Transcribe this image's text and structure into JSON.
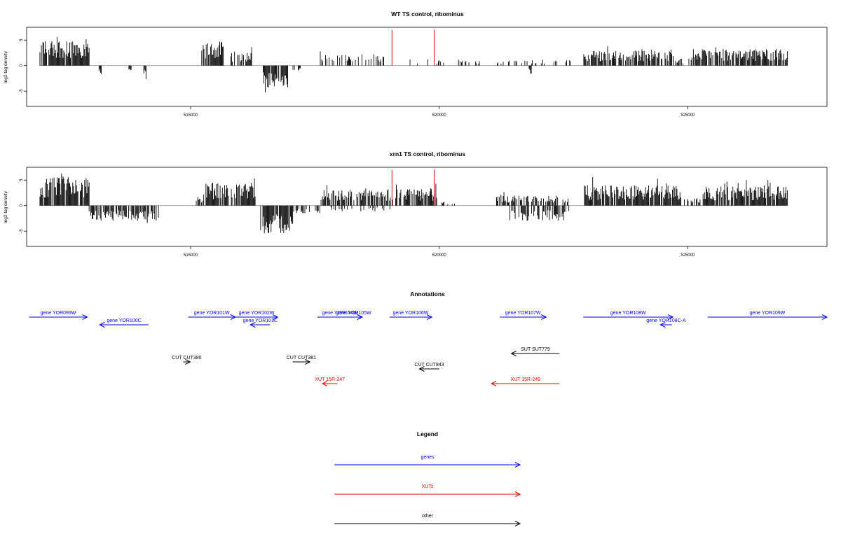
{
  "chart_data": [
    {
      "type": "bar",
      "title": "WT TS control, ribominus",
      "ylabel": "log2 tag density",
      "xlim": [
        511700,
        527800
      ],
      "ylim": [
        -8,
        7.5
      ],
      "xticks": [
        515000,
        520000,
        525000
      ],
      "yticks": [
        -5,
        0,
        5
      ],
      "grid": false,
      "baseline_color": "#999999",
      "bar_color": "#000000",
      "marker_color": "#e00000",
      "markers": [
        519050,
        519900
      ],
      "regions": [
        {
          "start": 511960,
          "end": 512960,
          "sign": 1,
          "amp": 4.2,
          "density": 0.85
        },
        {
          "start": 513150,
          "end": 513200,
          "sign": -1,
          "amp": 1.8,
          "density": 1
        },
        {
          "start": 513750,
          "end": 513800,
          "sign": -1,
          "amp": 1.0,
          "density": 1
        },
        {
          "start": 514050,
          "end": 514100,
          "sign": -1,
          "amp": 2.2,
          "density": 1
        },
        {
          "start": 515200,
          "end": 515650,
          "sign": 1,
          "amp": 3.8,
          "density": 0.85
        },
        {
          "start": 515800,
          "end": 516250,
          "sign": 1,
          "amp": 2.2,
          "density": 0.65
        },
        {
          "start": 516450,
          "end": 516950,
          "sign": -1,
          "amp": 3.6,
          "density": 0.95
        },
        {
          "start": 517050,
          "end": 517250,
          "sign": -1,
          "amp": 0.8,
          "density": 0.5
        },
        {
          "start": 517600,
          "end": 518900,
          "sign": 1,
          "amp": 1.8,
          "density": 0.45
        },
        {
          "start": 519300,
          "end": 520800,
          "sign": 1,
          "amp": 1.0,
          "density": 0.12
        },
        {
          "start": 521100,
          "end": 522700,
          "sign": 1,
          "amp": 1.0,
          "density": 0.25
        },
        {
          "start": 521800,
          "end": 521850,
          "sign": -1,
          "amp": 1.6,
          "density": 1
        },
        {
          "start": 522900,
          "end": 524700,
          "sign": 1,
          "amp": 2.4,
          "density": 0.75
        },
        {
          "start": 524700,
          "end": 524950,
          "sign": 1,
          "amp": 1.2,
          "density": 0.5
        },
        {
          "start": 525000,
          "end": 527000,
          "sign": 1,
          "amp": 2.6,
          "density": 0.8
        }
      ]
    },
    {
      "type": "bar",
      "title": "xrn1 TS control, ribominus",
      "ylabel": "log2 tag density",
      "xlim": [
        511700,
        527800
      ],
      "ylim": [
        -8,
        7.5
      ],
      "xticks": [
        515000,
        520000,
        525000
      ],
      "yticks": [
        -5,
        0,
        5
      ],
      "grid": false,
      "baseline_color": "#999999",
      "bar_color": "#000000",
      "marker_color": "#e00000",
      "markers": [
        519050,
        519900
      ],
      "regions": [
        {
          "start": 511960,
          "end": 512960,
          "sign": 1,
          "amp": 4.5,
          "density": 0.9
        },
        {
          "start": 512950,
          "end": 514350,
          "sign": -1,
          "amp": 2.4,
          "density": 0.7
        },
        {
          "start": 515000,
          "end": 515300,
          "sign": 1,
          "amp": 1.6,
          "density": 0.4
        },
        {
          "start": 515300,
          "end": 516300,
          "sign": 1,
          "amp": 3.6,
          "density": 0.8
        },
        {
          "start": 516400,
          "end": 517050,
          "sign": -1,
          "amp": 4.4,
          "density": 0.95
        },
        {
          "start": 517050,
          "end": 517600,
          "sign": -1,
          "amp": 1.2,
          "density": 0.5
        },
        {
          "start": 517600,
          "end": 519950,
          "sign": 1,
          "amp": 2.6,
          "density": 0.7
        },
        {
          "start": 517800,
          "end": 519300,
          "sign": -1,
          "amp": 0.9,
          "density": 0.25
        },
        {
          "start": 520000,
          "end": 520300,
          "sign": 1,
          "amp": 0.8,
          "density": 0.3
        },
        {
          "start": 521100,
          "end": 522600,
          "sign": 1,
          "amp": 1.6,
          "density": 0.45
        },
        {
          "start": 521400,
          "end": 522600,
          "sign": -1,
          "amp": 2.4,
          "density": 0.6
        },
        {
          "start": 522900,
          "end": 524850,
          "sign": 1,
          "amp": 3.2,
          "density": 0.9
        },
        {
          "start": 524850,
          "end": 525250,
          "sign": 1,
          "amp": 1.2,
          "density": 0.5
        },
        {
          "start": 525300,
          "end": 527000,
          "sign": 1,
          "amp": 3.0,
          "density": 0.9
        }
      ]
    }
  ],
  "annotations": {
    "title": "Annotations",
    "colors": {
      "gene": "#0000ee",
      "xut": "#ee0000",
      "other": "#000000"
    },
    "features": [
      {
        "label": "gene YOR099W",
        "type": "gene",
        "strand": "+",
        "start": 511750,
        "end": 512920,
        "row": 0
      },
      {
        "label": "gene YOR100C",
        "type": "gene",
        "strand": "-",
        "start": 513170,
        "end": 514150,
        "row": 1
      },
      {
        "label": "gene YOR101W",
        "type": "gene",
        "strand": "+",
        "start": 514950,
        "end": 515900,
        "row": 0
      },
      {
        "label": "gene YOR102W",
        "type": "gene",
        "strand": "+",
        "start": 515900,
        "end": 516750,
        "row": 0
      },
      {
        "label": "gene YOR103C",
        "type": "gene",
        "strand": "-",
        "start": 516200,
        "end": 516600,
        "row": 1
      },
      {
        "label": "gene YOR104W",
        "type": "gene",
        "strand": "+",
        "start": 517550,
        "end": 518450,
        "row": 0
      },
      {
        "label": "gene YOR105W",
        "type": "gene",
        "strand": "+",
        "start": 518100,
        "end": 518450,
        "row": 0
      },
      {
        "label": "gene YOR106W",
        "type": "gene",
        "strand": "+",
        "start": 519000,
        "end": 519850,
        "row": 0
      },
      {
        "label": "gene YOR107W",
        "type": "gene",
        "strand": "+",
        "start": 521220,
        "end": 522150,
        "row": 0
      },
      {
        "label": "gene YOR108W",
        "type": "gene",
        "strand": "+",
        "start": 522900,
        "end": 524700,
        "row": 0
      },
      {
        "label": "gene YOR108C-A",
        "type": "gene",
        "strand": "-",
        "start": 524450,
        "end": 524680,
        "row": 1
      },
      {
        "label": "gene YOR109W",
        "type": "gene",
        "strand": "+",
        "start": 525400,
        "end": 527800,
        "row": 0
      },
      {
        "label": "SUT SUT779",
        "type": "other",
        "strand": "-",
        "start": 521450,
        "end": 522420,
        "row": 3
      },
      {
        "label": "CUT CUT380",
        "type": "other",
        "strand": "+",
        "start": 514850,
        "end": 514990,
        "row": 4
      },
      {
        "label": "CUT CUT381",
        "type": "other",
        "strand": "+",
        "start": 517050,
        "end": 517400,
        "row": 4
      },
      {
        "label": "CUT CUT843",
        "type": "other",
        "strand": "-",
        "start": 519600,
        "end": 520000,
        "row": 5
      },
      {
        "label": "XUT 15R-247",
        "type": "xut",
        "strand": "-",
        "start": 517650,
        "end": 517950,
        "row": 6
      },
      {
        "label": "XUT 15R-249",
        "type": "xut",
        "strand": "-",
        "start": 521050,
        "end": 522420,
        "row": 6
      }
    ]
  },
  "legend": {
    "title": "Legend",
    "items": [
      {
        "label": "genes",
        "color": "#0000ee"
      },
      {
        "label": "XUTs",
        "color": "#ee0000"
      },
      {
        "label": "other",
        "color": "#000000"
      }
    ]
  }
}
